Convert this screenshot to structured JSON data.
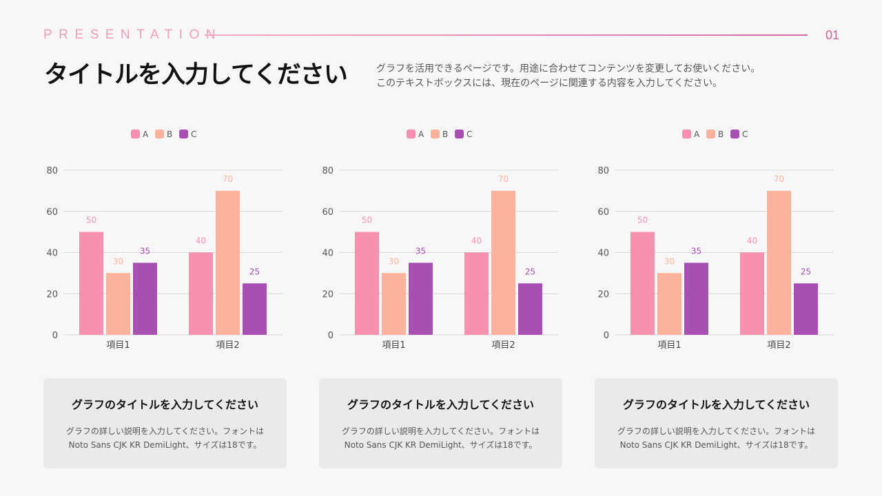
{
  "header": {
    "brand": "PRESENTATION",
    "page_number": "01",
    "title": "タイトルを入力してください",
    "description": [
      "グラフを活用できるページです。用途に合わせてコンテンツを変更してお使いください。",
      "このテキストボックスには、現在のページに関連する内容を入力してください。"
    ]
  },
  "colors": {
    "A": "#f78fae",
    "B": "#fdb29b",
    "C": "#a84fb3"
  },
  "chart_data": [
    {
      "type": "bar",
      "categories": [
        "項目1",
        "項目2"
      ],
      "ylim": [
        0,
        80
      ],
      "yticks": [
        0,
        20,
        40,
        60,
        80
      ],
      "grid": true,
      "legend": "top",
      "series": [
        {
          "name": "A",
          "values": [
            50,
            40
          ]
        },
        {
          "name": "B",
          "values": [
            30,
            70
          ]
        },
        {
          "name": "C",
          "values": [
            35,
            25
          ]
        }
      ]
    },
    {
      "type": "bar",
      "categories": [
        "項目1",
        "項目2"
      ],
      "ylim": [
        0,
        80
      ],
      "yticks": [
        0,
        20,
        40,
        60,
        80
      ],
      "grid": true,
      "legend": "top",
      "series": [
        {
          "name": "A",
          "values": [
            50,
            40
          ]
        },
        {
          "name": "B",
          "values": [
            30,
            70
          ]
        },
        {
          "name": "C",
          "values": [
            35,
            25
          ]
        }
      ]
    },
    {
      "type": "bar",
      "categories": [
        "項目1",
        "項目2"
      ],
      "ylim": [
        0,
        80
      ],
      "yticks": [
        0,
        20,
        40,
        60,
        80
      ],
      "grid": true,
      "legend": "top",
      "series": [
        {
          "name": "A",
          "values": [
            50,
            40
          ]
        },
        {
          "name": "B",
          "values": [
            30,
            70
          ]
        },
        {
          "name": "C",
          "values": [
            35,
            25
          ]
        }
      ]
    }
  ],
  "cards": [
    {
      "title": "グラフのタイトルを入力してください",
      "text1": "グラフの詳しい説明を入力してください。フォントは",
      "text2": "Noto Sans CJK KR DemiLight、サイズは18です。"
    },
    {
      "title": "グラフのタイトルを入力してください",
      "text1": "グラフの詳しい説明を入力してください。フォントは",
      "text2": "Noto Sans CJK KR DemiLight、サイズは18です。"
    },
    {
      "title": "グラフのタイトルを入力してください",
      "text1": "グラフの詳しい説明を入力してください。フォントは",
      "text2": "Noto Sans CJK KR DemiLight、サイズは18です。"
    }
  ]
}
